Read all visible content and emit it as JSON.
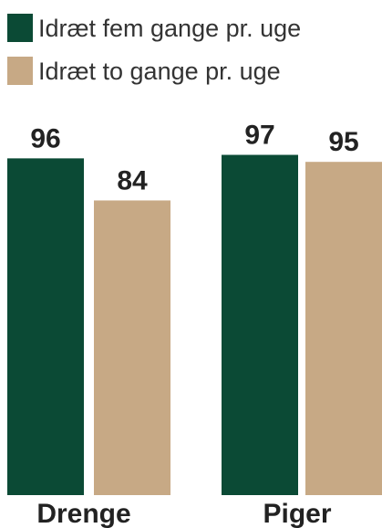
{
  "chart_data": {
    "type": "bar",
    "categories": [
      "Drenge",
      "Piger"
    ],
    "series": [
      {
        "name": "Idræt fem gange pr. uge",
        "values": [
          96,
          97
        ],
        "color": "#0b4a35"
      },
      {
        "name": "Idræt to gange pr. uge",
        "values": [
          84,
          95
        ],
        "color": "#c7a985"
      }
    ],
    "title": "",
    "xlabel": "",
    "ylabel": "",
    "ylim": [
      0,
      100
    ],
    "legend": "top-left",
    "grid": false,
    "value_labels": true
  }
}
